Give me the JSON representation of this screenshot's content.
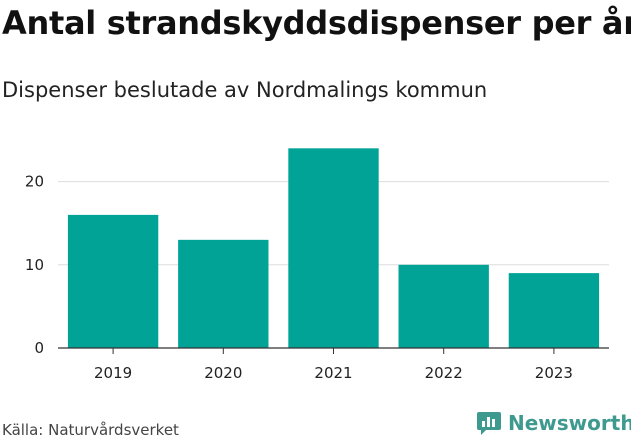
{
  "title": "Antal strandskyddsdispenser per år",
  "subtitle": "Dispenser beslutade av Nordmalings kommun",
  "source": "Källa: Naturvårdsverket",
  "brand": "Newsworthy",
  "colors": {
    "bar": "#00a396",
    "grid": "#dddddd",
    "axis": "#333333",
    "brand": "#3e9a8f"
  },
  "chart_data": {
    "type": "bar",
    "title": "Antal strandskyddsdispenser per år",
    "subtitle": "Dispenser beslutade av Nordmalings kommun",
    "xlabel": "",
    "ylabel": "",
    "categories": [
      "2019",
      "2020",
      "2021",
      "2022",
      "2023"
    ],
    "values": [
      16,
      13,
      24,
      10,
      9
    ],
    "yticks": [
      0,
      10,
      20
    ],
    "ylim": [
      0,
      25
    ],
    "grid": true,
    "legend": "none"
  }
}
